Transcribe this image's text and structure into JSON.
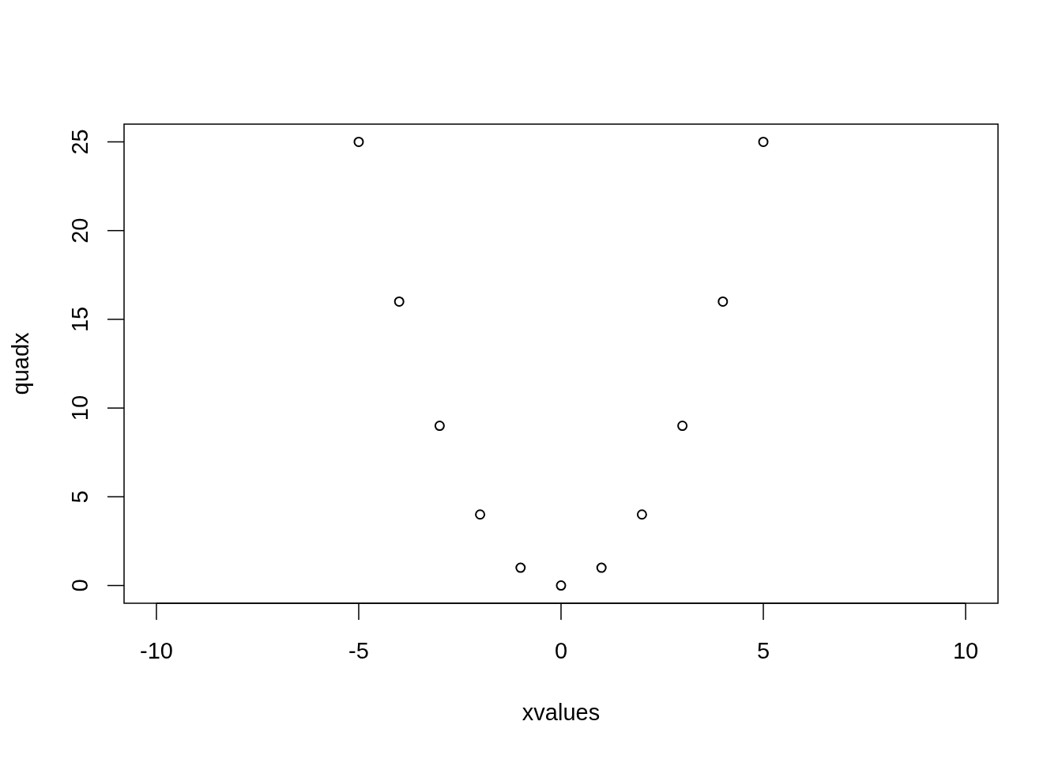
{
  "chart_data": {
    "type": "scatter",
    "xlabel": "xvalues",
    "ylabel": "quadx",
    "x": [
      -5,
      -4,
      -3,
      -2,
      -1,
      0,
      1,
      2,
      3,
      4,
      5
    ],
    "values": [
      25,
      16,
      9,
      4,
      1,
      0,
      1,
      4,
      9,
      16,
      25
    ],
    "color": "#000000",
    "marker": "circle",
    "xlim": [
      -10.8,
      10.8
    ],
    "xticks": [
      -10,
      -5,
      0,
      5,
      10
    ],
    "ylim": [
      -1,
      26
    ],
    "yticks": [
      0,
      5,
      10,
      15,
      20,
      25
    ],
    "grid": false
  }
}
